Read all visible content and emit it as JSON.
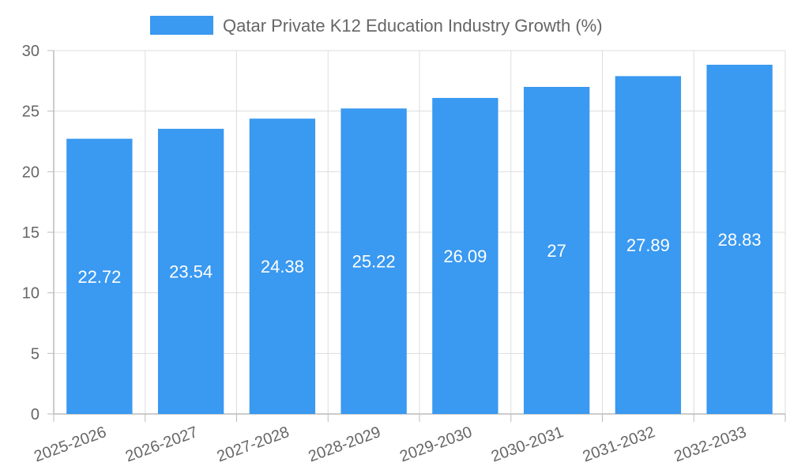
{
  "chart_data": {
    "type": "bar",
    "categories": [
      "2025-2026",
      "2026-2027",
      "2027-2028",
      "2028-2029",
      "2029-2030",
      "2030-2031",
      "2031-2032",
      "2032-2033"
    ],
    "series": [
      {
        "name": "Qatar Private K12 Education Industry Growth (%)",
        "values": [
          22.72,
          23.54,
          24.38,
          25.22,
          26.09,
          27,
          27.89,
          28.83
        ],
        "value_labels": [
          "22.72",
          "23.54",
          "24.38",
          "25.22",
          "26.09",
          "27",
          "27.89",
          "28.83"
        ]
      }
    ],
    "ylim": [
      0,
      30
    ],
    "yticks": [
      0,
      5,
      10,
      15,
      20,
      25,
      30
    ],
    "ytick_labels": [
      "0",
      "5",
      "10",
      "15",
      "20",
      "25",
      "30"
    ],
    "grid": true,
    "legend_position": "top-center",
    "colors": {
      "bar": "#3a99f0",
      "grid": "#dddddd",
      "text": "#666666",
      "value_label": "#ffffff"
    },
    "legend_label": "Qatar Private K12 Education Industry Growth (%)"
  }
}
